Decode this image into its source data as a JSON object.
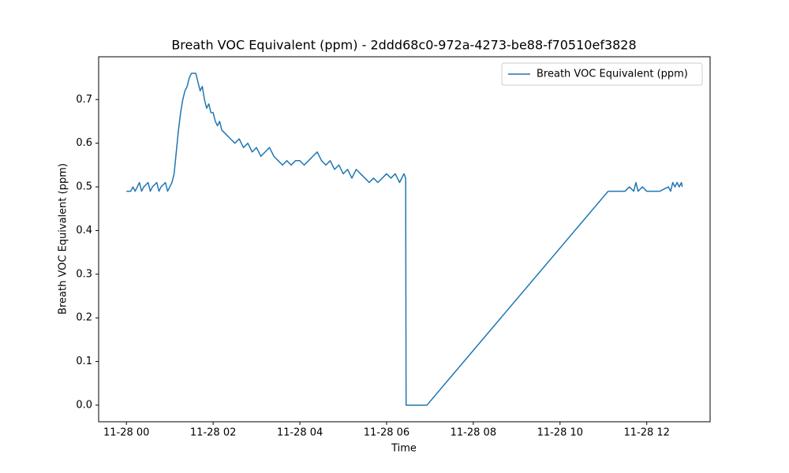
{
  "chart_data": {
    "type": "line",
    "title": "Breath VOC Equivalent (ppm) - 2ddd68c0-972a-4273-be88-f70510ef3828",
    "xlabel": "Time",
    "ylabel": "Breath VOC Equivalent (ppm)",
    "x": [
      0,
      0.1,
      0.15,
      0.2,
      0.25,
      0.3,
      0.35,
      0.4,
      0.5,
      0.55,
      0.6,
      0.7,
      0.75,
      0.8,
      0.9,
      0.95,
      1.0,
      1.05,
      1.1,
      1.15,
      1.2,
      1.25,
      1.3,
      1.35,
      1.4,
      1.45,
      1.5,
      1.6,
      1.65,
      1.7,
      1.75,
      1.8,
      1.85,
      1.9,
      1.95,
      2.0,
      2.05,
      2.1,
      2.15,
      2.2,
      2.3,
      2.4,
      2.5,
      2.6,
      2.7,
      2.8,
      2.9,
      3.0,
      3.1,
      3.2,
      3.3,
      3.4,
      3.5,
      3.6,
      3.7,
      3.8,
      3.9,
      4.0,
      4.1,
      4.2,
      4.3,
      4.4,
      4.5,
      4.6,
      4.7,
      4.8,
      4.9,
      5.0,
      5.1,
      5.2,
      5.3,
      5.4,
      5.5,
      5.6,
      5.7,
      5.8,
      5.9,
      6.0,
      6.1,
      6.2,
      6.3,
      6.4,
      6.44,
      6.45,
      6.93,
      11.11,
      11.5,
      11.6,
      11.7,
      11.75,
      11.8,
      11.9,
      12.0,
      12.3,
      12.5,
      12.55,
      12.6,
      12.65,
      12.7,
      12.75,
      12.8,
      12.82
    ],
    "series": [
      {
        "name": "Breath VOC Equivalent (ppm)",
        "color": "#1f77b4",
        "values": [
          0.49,
          0.49,
          0.5,
          0.49,
          0.5,
          0.51,
          0.49,
          0.5,
          0.51,
          0.49,
          0.5,
          0.51,
          0.49,
          0.5,
          0.51,
          0.49,
          0.5,
          0.51,
          0.53,
          0.58,
          0.63,
          0.67,
          0.7,
          0.72,
          0.73,
          0.75,
          0.76,
          0.76,
          0.74,
          0.72,
          0.73,
          0.7,
          0.68,
          0.69,
          0.67,
          0.67,
          0.65,
          0.64,
          0.65,
          0.63,
          0.62,
          0.61,
          0.6,
          0.61,
          0.59,
          0.6,
          0.58,
          0.59,
          0.57,
          0.58,
          0.59,
          0.57,
          0.56,
          0.55,
          0.56,
          0.55,
          0.56,
          0.56,
          0.55,
          0.56,
          0.57,
          0.58,
          0.56,
          0.55,
          0.56,
          0.54,
          0.55,
          0.53,
          0.54,
          0.52,
          0.54,
          0.53,
          0.52,
          0.51,
          0.52,
          0.51,
          0.52,
          0.53,
          0.52,
          0.53,
          0.51,
          0.53,
          0.52,
          0,
          0,
          0.49,
          0.49,
          0.5,
          0.49,
          0.51,
          0.49,
          0.5,
          0.49,
          0.49,
          0.5,
          0.49,
          0.51,
          0.5,
          0.51,
          0.5,
          0.51,
          0.5
        ]
      }
    ],
    "xlim": [
      -0.641,
      13.461
    ],
    "ylim": [
      -0.038,
      0.798
    ],
    "xticks": [
      {
        "value": 0,
        "label": "11-28 00"
      },
      {
        "value": 2,
        "label": "11-28 02"
      },
      {
        "value": 4,
        "label": "11-28 04"
      },
      {
        "value": 6,
        "label": "11-28 06"
      },
      {
        "value": 8,
        "label": "11-28 08"
      },
      {
        "value": 10,
        "label": "11-28 10"
      },
      {
        "value": 12,
        "label": "11-28 12"
      }
    ],
    "yticks": [
      {
        "value": 0,
        "label": "0.0"
      },
      0.1,
      0.2,
      0.3,
      0.4,
      0.5,
      0.6,
      0.7
    ],
    "legend": "upper right"
  }
}
